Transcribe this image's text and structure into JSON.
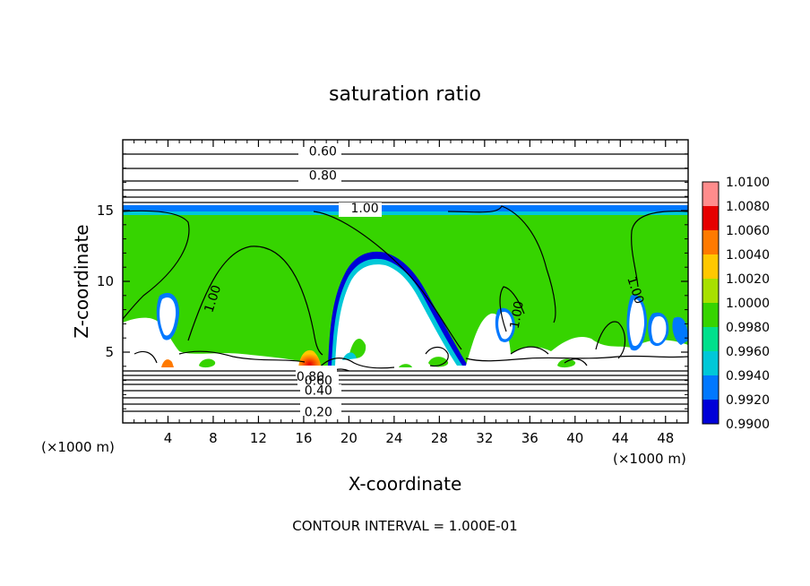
{
  "chart_data": {
    "type": "heatmap",
    "title": "saturation ratio",
    "xlabel": "X-coordinate",
    "ylabel": "Z-coordinate",
    "x_unit_left": "(×1000 m)",
    "x_unit_right": "(×1000 m)",
    "xlim": [
      0,
      50
    ],
    "ylim": [
      0,
      20
    ],
    "x_ticks": [
      4,
      8,
      12,
      16,
      20,
      24,
      28,
      32,
      36,
      40,
      44,
      48
    ],
    "y_ticks": [
      5,
      10,
      15
    ],
    "footer": "CONTOUR INTERVAL = 1.000E-01",
    "colorbar": {
      "levels": [
        "1.0100",
        "1.0080",
        "1.0060",
        "1.0040",
        "1.0020",
        "1.0000",
        "0.9980",
        "0.9960",
        "0.9940",
        "0.9920",
        "0.9900"
      ],
      "colors": [
        "#ff8c8c",
        "#e60000",
        "#ff7a00",
        "#ffc800",
        "#a8e000",
        "#36d400",
        "#00e08c",
        "#00c8d8",
        "#0078ff",
        "#0000d8",
        "#7800a8"
      ]
    },
    "contour_labels": [
      {
        "text": "0.60",
        "x": 17.7,
        "y": 19.2
      },
      {
        "text": "0.80",
        "x": 17.7,
        "y": 17.5
      },
      {
        "text": "1.00",
        "x": 21.4,
        "y": 15.2
      },
      {
        "text": "1.00",
        "x": 8.3,
        "y": 9.0
      },
      {
        "text": "1.00",
        "x": 35.2,
        "y": 7.9
      },
      {
        "text": "1.00",
        "x": 45.0,
        "y": 9.6
      },
      {
        "text": "0.80",
        "x": 16.6,
        "y": 3.3
      },
      {
        "text": "0.60",
        "x": 17.3,
        "y": 3.0
      },
      {
        "text": "0.40",
        "x": 17.3,
        "y": 2.3
      },
      {
        "text": "0.20",
        "x": 17.3,
        "y": 0.8
      }
    ]
  }
}
